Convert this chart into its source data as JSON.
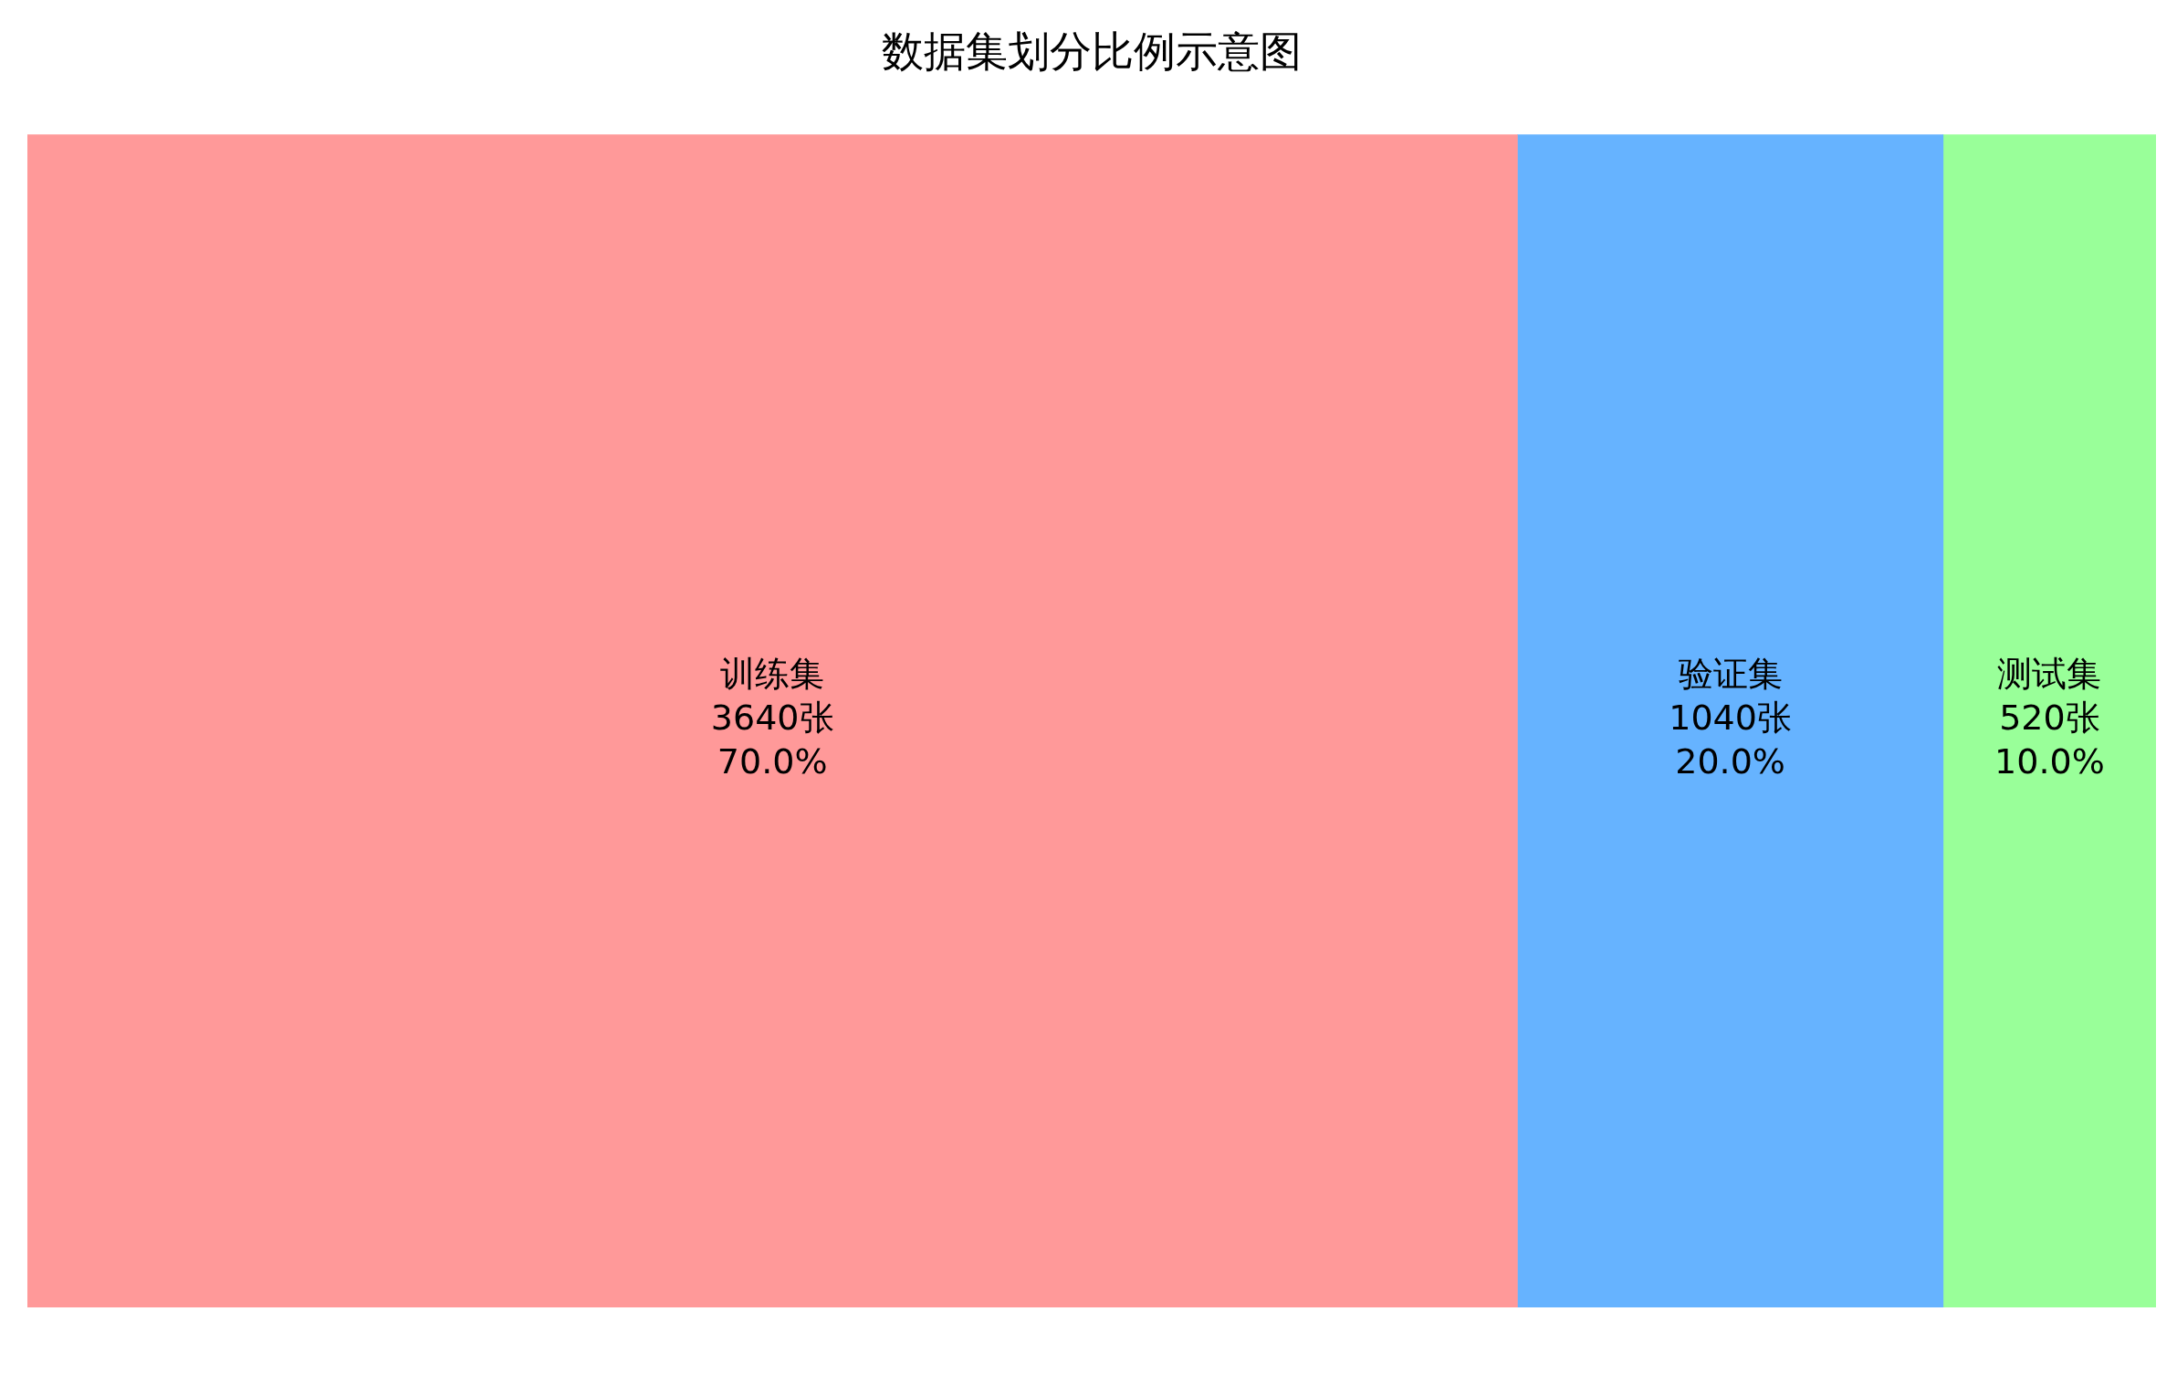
{
  "chart_data": {
    "type": "other",
    "title": "数据集划分比例示意图",
    "categories": [
      "训练集",
      "验证集",
      "测试集"
    ],
    "values": [
      3640,
      1040,
      520
    ],
    "colors": [
      "#ff9999",
      "#66b3ff",
      "#99ff99"
    ],
    "value_labels": [
      "3640张\n70.0%",
      "1040张\n20.0%",
      "520张\n10.0%"
    ]
  }
}
